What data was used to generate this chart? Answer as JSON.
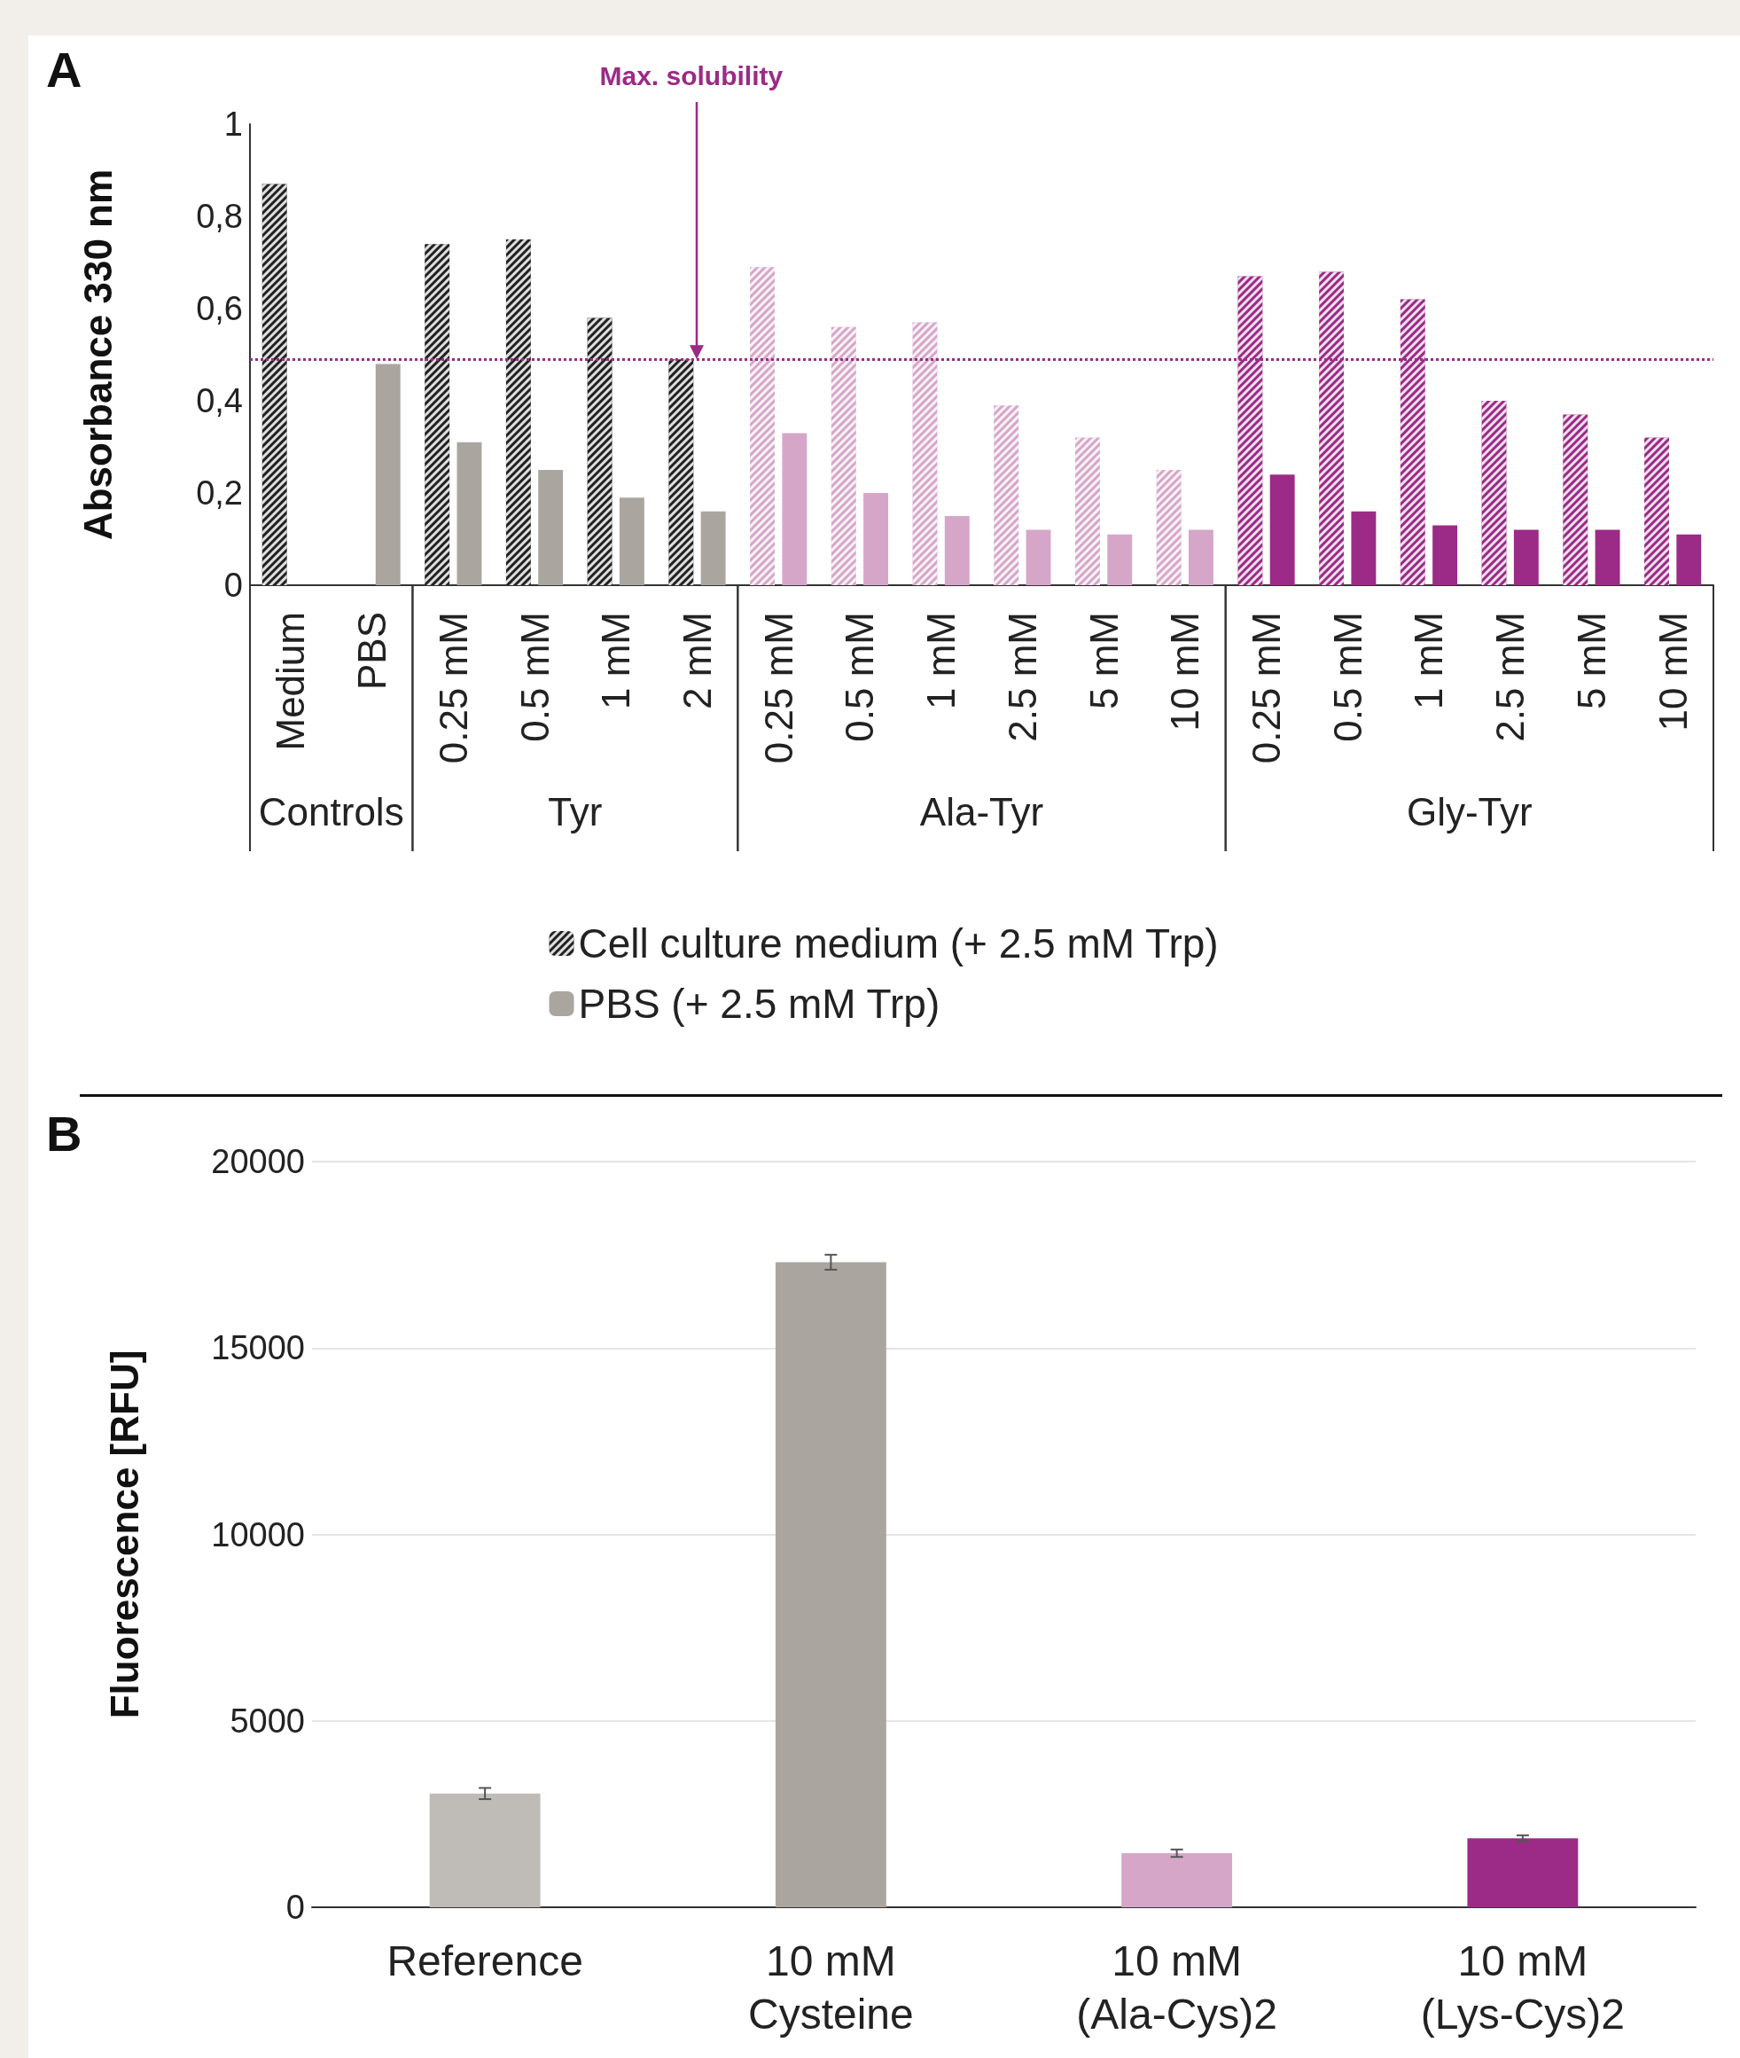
{
  "chart_data": [
    {
      "type": "bar",
      "ylabel": "Absorbance 330 nm",
      "categories": [
        "Medium",
        "PBS",
        "0.25 mM",
        "0.5 mM",
        "1 mM",
        "2 mM",
        "0.25 mM",
        "0.5 mM",
        "1 mM",
        "2.5 mM",
        "5 mM",
        "10 mM",
        "0.25 mM",
        "0.5 mM",
        "1 mM",
        "2.5 mM",
        "5 mM",
        "10 mM"
      ],
      "series": [
        {
          "name": "Cell culture medium (+ 2.5 mM Trp)",
          "color": "#222222",
          "colors": [
            "#222222",
            null,
            "#222222",
            "#222222",
            "#222222",
            "#222222",
            "#d6a6c9",
            "#d6a6c9",
            "#d6a6c9",
            "#d6a6c9",
            "#d6a6c9",
            "#d6a6c9",
            "#9b2b86",
            "#9b2b86",
            "#9b2b86",
            "#9b2b86",
            "#9b2b86",
            "#9b2b86"
          ],
          "values": [
            0.87,
            null,
            0.74,
            0.75,
            0.58,
            0.49,
            0.69,
            0.56,
            0.57,
            0.39,
            0.32,
            0.25,
            0.67,
            0.68,
            0.62,
            0.4,
            0.37,
            0.32
          ]
        },
        {
          "name": "PBS (+ 2.5 mM Trp)",
          "color": "#aaa59f",
          "colors": [
            null,
            "#aaa59f",
            "#aaa59f",
            "#aaa59f",
            "#aaa59f",
            "#aaa59f",
            "#d6a6c9",
            "#d6a6c9",
            "#d6a6c9",
            "#d6a6c9",
            "#d6a6c9",
            "#d6a6c9",
            "#9b2b86",
            "#9b2b86",
            "#9b2b86",
            "#9b2b86",
            "#9b2b86",
            "#9b2b86"
          ],
          "values": [
            null,
            0.48,
            0.31,
            0.25,
            0.19,
            0.16,
            0.33,
            0.2,
            0.15,
            0.12,
            0.11,
            0.12,
            0.24,
            0.16,
            0.13,
            0.12,
            0.12,
            0.11
          ]
        }
      ],
      "ylim": [
        0,
        1
      ],
      "yticks": [
        0,
        {
          "value": 0.2,
          "label": "0,2"
        },
        {
          "value": 0.4,
          "label": "0,4"
        },
        {
          "value": 0.6,
          "label": "0,6"
        },
        {
          "value": 0.8,
          "label": "0,8"
        },
        1
      ],
      "ref_lines": [
        {
          "axis": "y",
          "value": 0.49,
          "label": "Max. solubility",
          "color": "#9b2b86",
          "line_style": "dotted"
        }
      ],
      "annotations": [
        "A",
        "Controls",
        "Tyr",
        "Ala-Tyr",
        "Gly-Tyr"
      ],
      "grid": false,
      "legend": "bottom"
    },
    {
      "type": "bar",
      "ylabel": "Fluorescence [RFU]",
      "categories": [
        "Reference",
        "10 mM\nCysteine",
        "10 mM\n(Ala-Cys)2",
        "10 mM\n(Lys-Cys)2"
      ],
      "values": [
        3050,
        17300,
        1450,
        1850
      ],
      "errors": [
        150,
        200,
        100,
        80
      ],
      "colors": [
        "#bfbcb7",
        "#aaa59f",
        "#d6a6c9",
        "#9b2b86"
      ],
      "ylim": [
        0,
        20000
      ],
      "yticks": [
        0,
        5000,
        10000,
        15000,
        20000
      ],
      "annotations": [
        "B"
      ],
      "grid": "y",
      "legend": false
    }
  ]
}
